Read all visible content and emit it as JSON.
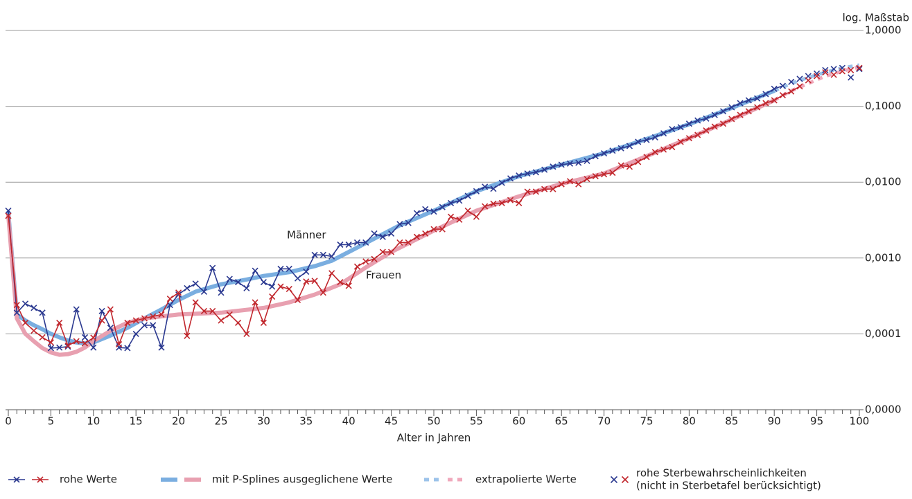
{
  "chart_data": {
    "type": "line",
    "yscale": "log",
    "xlabel": "Alter in Jahren",
    "ylabel": "log. Maßstab",
    "annotations": [
      "Männer",
      "Frauen"
    ],
    "xlim": [
      0,
      100
    ],
    "xticks": [
      0,
      5,
      10,
      15,
      20,
      25,
      30,
      35,
      40,
      45,
      50,
      55,
      60,
      65,
      70,
      75,
      80,
      85,
      90,
      95,
      100
    ],
    "ylim": [
      1e-05,
      1
    ],
    "yticks": [
      {
        "value": 1e-05,
        "label": "0,0000"
      },
      {
        "value": 0.0001,
        "label": "0,0001"
      },
      {
        "value": 0.001,
        "label": "0,0010"
      },
      {
        "value": 0.01,
        "label": "0,0100"
      },
      {
        "value": 0.1,
        "label": "0,1000"
      },
      {
        "value": 1,
        "label": "1,0000"
      }
    ],
    "grid": true,
    "legend": "bottom",
    "groups": [
      {
        "name": "mit P-Splines ausgeglichene Werte",
        "line": "thick",
        "marker": null,
        "series": [
          {
            "color": "#7aaee0",
            "x": [
              0,
              1,
              2,
              3,
              4,
              5,
              6,
              7,
              8,
              9,
              10,
              12,
              14,
              16,
              18,
              20,
              22,
              25,
              28,
              30,
              33,
              36,
              38,
              40,
              43,
              46,
              50,
              55,
              60,
              65,
              70,
              75,
              80,
              85,
              90
            ],
            "values": [
              0.004,
              0.00018,
              0.00015,
              0.00013,
              0.000115,
              0.0001,
              9e-05,
              8.2e-05,
              7.7e-05,
              7.5e-05,
              7.7e-05,
              9.5e-05,
              0.00012,
              0.00016,
              0.00021,
              0.00028,
              0.00036,
              0.00045,
              0.00052,
              0.00058,
              0.00065,
              0.00078,
              0.00092,
              0.0012,
              0.0018,
              0.0027,
              0.0042,
              0.0076,
              0.012,
              0.017,
              0.024,
              0.037,
              0.058,
              0.095,
              0.16
            ]
          },
          {
            "color": "#e8a0b0",
            "x": [
              0,
              1,
              2,
              3,
              4,
              5,
              6,
              7,
              8,
              9,
              10,
              12,
              14,
              16,
              18,
              20,
              25,
              30,
              33,
              36,
              39,
              42,
              45,
              50,
              55,
              60,
              65,
              70,
              75,
              80,
              85,
              90
            ],
            "values": [
              0.0036,
              0.00016,
              0.0001,
              8e-05,
              6.5e-05,
              5.7e-05,
              5.3e-05,
              5.4e-05,
              5.8e-05,
              6.6e-05,
              8e-05,
              0.00011,
              0.00014,
              0.00016,
              0.00017,
              0.00018,
              0.00019,
              0.00022,
              0.00026,
              0.00033,
              0.00045,
              0.00075,
              0.0012,
              0.0023,
              0.0042,
              0.0065,
              0.0095,
              0.013,
              0.022,
              0.038,
              0.067,
              0.12
            ]
          }
        ]
      },
      {
        "name": "extrapolierte Werte",
        "line": "dashed",
        "marker": null,
        "series": [
          {
            "color": "#9cc3ea",
            "x": [
              90,
              92,
              94,
              96,
              98,
              100
            ],
            "values": [
              0.16,
              0.2,
              0.24,
              0.28,
              0.32,
              0.35
            ]
          },
          {
            "color": "#f0a8bb",
            "x": [
              90,
              92,
              94,
              96,
              98,
              100
            ],
            "values": [
              0.12,
              0.16,
              0.2,
              0.25,
              0.29,
              0.33
            ]
          }
        ]
      },
      {
        "name": "rohe Werte",
        "line": "thin",
        "marker": "x",
        "series": [
          {
            "color": "#2b3990",
            "x": [
              0,
              1,
              2,
              3,
              4,
              5,
              6,
              7,
              8,
              9,
              10,
              11,
              12,
              13,
              14,
              15,
              16,
              17,
              18,
              19,
              20,
              21,
              22,
              23,
              24,
              25,
              26,
              27,
              28,
              29,
              30,
              31,
              32,
              33,
              34,
              35,
              36,
              37,
              38,
              39,
              40,
              41,
              42,
              43,
              44,
              45,
              46,
              47,
              48,
              49,
              50,
              51,
              52,
              53,
              54,
              55,
              56,
              57,
              58,
              59,
              60,
              61,
              62,
              63,
              64,
              65,
              66,
              67,
              68,
              69,
              70,
              71,
              72,
              73,
              74,
              75,
              76,
              77,
              78,
              79,
              80,
              81,
              82,
              83,
              84,
              85,
              86,
              87,
              88,
              89,
              90,
              91
            ],
            "values": [
              0.0042,
              0.00019,
              0.00025,
              0.00022,
              0.00019,
              6.5e-05,
              6.6e-05,
              6.8e-05,
              0.00021,
              9e-05,
              6.6e-05,
              0.0002,
              0.00012,
              6.6e-05,
              6.5e-05,
              0.0001,
              0.00013,
              0.00013,
              6.6e-05,
              0.00024,
              0.00033,
              0.0004,
              0.00046,
              0.00036,
              0.00074,
              0.00035,
              0.00053,
              0.00048,
              0.0004,
              0.00068,
              0.00048,
              0.00042,
              0.00072,
              0.00072,
              0.00054,
              0.00066,
              0.0011,
              0.0011,
              0.00105,
              0.0015,
              0.0015,
              0.0016,
              0.0016,
              0.0021,
              0.0019,
              0.0021,
              0.0028,
              0.0029,
              0.0039,
              0.0044,
              0.0041,
              0.0047,
              0.0053,
              0.0057,
              0.0066,
              0.0076,
              0.0087,
              0.0082,
              0.0098,
              0.0112,
              0.0122,
              0.013,
              0.0135,
              0.0146,
              0.016,
              0.017,
              0.0176,
              0.018,
              0.0191,
              0.022,
              0.024,
              0.026,
              0.028,
              0.03,
              0.034,
              0.036,
              0.039,
              0.044,
              0.05,
              0.053,
              0.059,
              0.065,
              0.069,
              0.077,
              0.086,
              0.097,
              0.11,
              0.12,
              0.127,
              0.145,
              0.17,
              0.186
            ]
          },
          {
            "color": "#c1272d",
            "x": [
              0,
              1,
              2,
              3,
              4,
              5,
              6,
              7,
              8,
              9,
              10,
              11,
              12,
              13,
              14,
              15,
              16,
              17,
              18,
              19,
              20,
              21,
              22,
              23,
              24,
              25,
              26,
              27,
              28,
              29,
              30,
              31,
              32,
              33,
              34,
              35,
              36,
              37,
              38,
              39,
              40,
              41,
              42,
              43,
              44,
              45,
              46,
              47,
              48,
              49,
              50,
              51,
              52,
              53,
              54,
              55,
              56,
              57,
              58,
              59,
              60,
              61,
              62,
              63,
              64,
              65,
              66,
              67,
              68,
              69,
              70,
              71,
              72,
              73,
              74,
              75,
              76,
              77,
              78,
              79,
              80,
              81,
              82,
              83,
              84,
              85,
              86,
              87,
              88,
              89,
              90,
              91,
              92,
              93
            ],
            "values": [
              0.0036,
              0.00024,
              0.00014,
              0.00011,
              9e-05,
              7.7e-05,
              0.00014,
              7e-05,
              8e-05,
              7.5e-05,
              8.9e-05,
              0.00015,
              0.00021,
              7.3e-05,
              0.00014,
              0.00015,
              0.00016,
              0.00017,
              0.00018,
              0.00029,
              0.00035,
              9.4e-05,
              0.00026,
              0.0002,
              0.0002,
              0.00015,
              0.00018,
              0.00014,
              0.0001,
              0.00026,
              0.00014,
              0.00031,
              0.00042,
              0.00039,
              0.00028,
              0.00049,
              0.0005,
              0.00035,
              0.00063,
              0.00048,
              0.00043,
              0.00077,
              0.0009,
              0.00097,
              0.0012,
              0.0012,
              0.0016,
              0.0016,
              0.0019,
              0.0021,
              0.0024,
              0.0024,
              0.0035,
              0.0032,
              0.0042,
              0.0035,
              0.0048,
              0.0052,
              0.0053,
              0.0058,
              0.0053,
              0.0075,
              0.0075,
              0.0081,
              0.0081,
              0.0094,
              0.0103,
              0.0094,
              0.011,
              0.012,
              0.0127,
              0.0133,
              0.0166,
              0.016,
              0.0185,
              0.0215,
              0.0249,
              0.0269,
              0.029,
              0.034,
              0.038,
              0.042,
              0.048,
              0.054,
              0.059,
              0.068,
              0.077,
              0.086,
              0.097,
              0.11,
              0.12,
              0.14,
              0.157,
              0.183
            ]
          }
        ]
      },
      {
        "name": [
          "rohe Sterbewahrscheinlichkeiten",
          "(nicht in Sterbetafel berücksichtigt)"
        ],
        "line": "none",
        "marker": "x",
        "series": [
          {
            "color": "#2b3990",
            "x": [
              92,
              93,
              94,
              95,
              96,
              97,
              98,
              99,
              100
            ],
            "values": [
              0.21,
              0.23,
              0.25,
              0.27,
              0.3,
              0.31,
              0.32,
              0.24,
              0.31
            ]
          },
          {
            "color": "#c1272d",
            "x": [
              94,
              95,
              96,
              97,
              98,
              99,
              100
            ],
            "values": [
              0.22,
              0.25,
              0.28,
              0.26,
              0.29,
              0.3,
              0.32
            ]
          }
        ]
      }
    ]
  }
}
